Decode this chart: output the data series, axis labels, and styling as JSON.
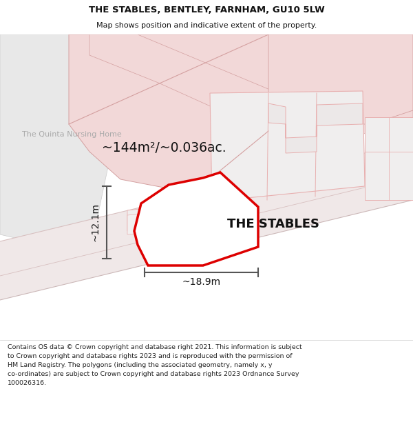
{
  "title": "THE STABLES, BENTLEY, FARNHAM, GU10 5LW",
  "subtitle": "Map shows position and indicative extent of the property.",
  "footer_lines": [
    "Contains OS data © Crown copyright and database right 2021. This information is subject to Crown copyright and database rights 2023 and is reproduced with the permission of",
    "HM Land Registry. The polygons (including the associated geometry, namely x, y co-ordinates) are subject to Crown copyright and database rights 2023 Ordnance Survey",
    "100026316."
  ],
  "area_label": "~144m²/~0.036ac.",
  "property_label": "THE STABLES",
  "width_label": "~18.9m",
  "height_label": "~12.1m",
  "nursing_home_label": "The Quinta Nursing Home",
  "plot_outline_color": "#dd0000",
  "plot_fill_color": "#ffffff",
  "dim_line_color": "#555555",
  "text_color": "#111111",
  "gray_area_color": "#e0e0e0",
  "pink_land_color": "#f2d8d8",
  "pink_land_edge": "#d4a0a0",
  "building_line_color": "#e8b0b0",
  "light_gray_building": "#e8e8e8",
  "road_color": "#f5eaea",
  "white_bg": "#ffffff",
  "map_white": "#f8f8f8"
}
